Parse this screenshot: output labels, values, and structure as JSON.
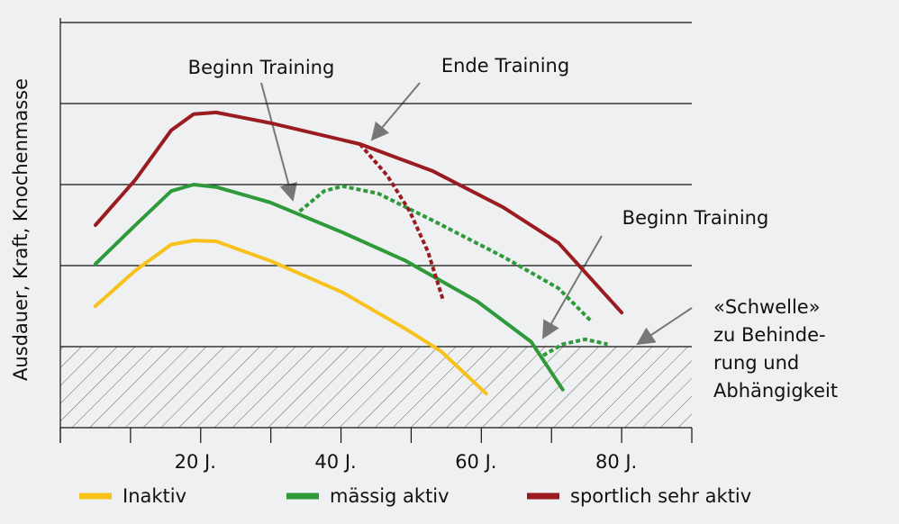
{
  "chart_data": {
    "type": "line",
    "y_label": "Ausdauer, Kraft, Knochenmasse",
    "xlim": [
      0,
      90
    ],
    "xticks": [
      {
        "value": 20,
        "label": "20 J."
      },
      {
        "value": 40,
        "label": "40 J."
      },
      {
        "value": 60,
        "label": "60 J."
      },
      {
        "value": 80,
        "label": "80 J."
      }
    ],
    "xminorticks": [
      0,
      10,
      30,
      50,
      70,
      90
    ],
    "ylim": [
      0,
      5
    ],
    "ygrid": [
      1,
      2,
      3,
      4,
      5
    ],
    "threshold": 1,
    "series": [
      {
        "name": "Inaktiv",
        "color": "#f7c21c",
        "x": [
          5,
          10.7,
          15.8,
          19,
          22.2,
          29.9,
          40.2,
          49.2,
          54.3,
          60.7
        ],
        "values": [
          1.5,
          1.94,
          2.26,
          2.31,
          2.3,
          2.06,
          1.67,
          1.22,
          0.94,
          0.42
        ]
      },
      {
        "name": "mässig aktiv",
        "color": "#2e9a3a",
        "x": [
          5,
          10.7,
          15.8,
          19,
          22.2,
          29.9,
          40.2,
          49.2,
          59.4,
          67.1,
          71.6
        ],
        "values": [
          2.02,
          2.5,
          2.92,
          3.0,
          2.97,
          2.78,
          2.41,
          2.06,
          1.56,
          1.06,
          0.47
        ]
      },
      {
        "name": "sportlich sehr aktiv",
        "color": "#9b1c20",
        "x": [
          5,
          10.7,
          15.8,
          19,
          22.2,
          29.9,
          42.7,
          53,
          63.1,
          71,
          80
        ],
        "values": [
          2.5,
          3.06,
          3.67,
          3.87,
          3.89,
          3.76,
          3.5,
          3.17,
          2.72,
          2.28,
          1.42
        ]
      },
      {
        "color": "#2e9a3a",
        "dashed": true,
        "x": [
          34.1,
          37.6,
          40.2,
          45.3,
          53,
          63.1,
          71,
          75.7
        ],
        "values": [
          2.67,
          2.92,
          2.98,
          2.89,
          2.56,
          2.11,
          1.72,
          1.31
        ]
      },
      {
        "color": "#2e9a3a",
        "dashed": true,
        "x": [
          68.8,
          71.6,
          74.8,
          78
        ],
        "values": [
          0.89,
          1.03,
          1.09,
          1.03
        ]
      },
      {
        "color": "#9b1c20",
        "dashed": true,
        "x": [
          42.7,
          46.6,
          49.8,
          52.4,
          54.6
        ],
        "values": [
          3.5,
          3.11,
          2.67,
          2.17,
          1.56
        ]
      }
    ],
    "annotations": [
      "Beginn Training",
      "Ende Training",
      "Beginn Training"
    ],
    "threshold_label": [
      "«Schwelle»",
      "zu Behinde-",
      "rung und",
      "Abhängigkeit"
    ]
  }
}
